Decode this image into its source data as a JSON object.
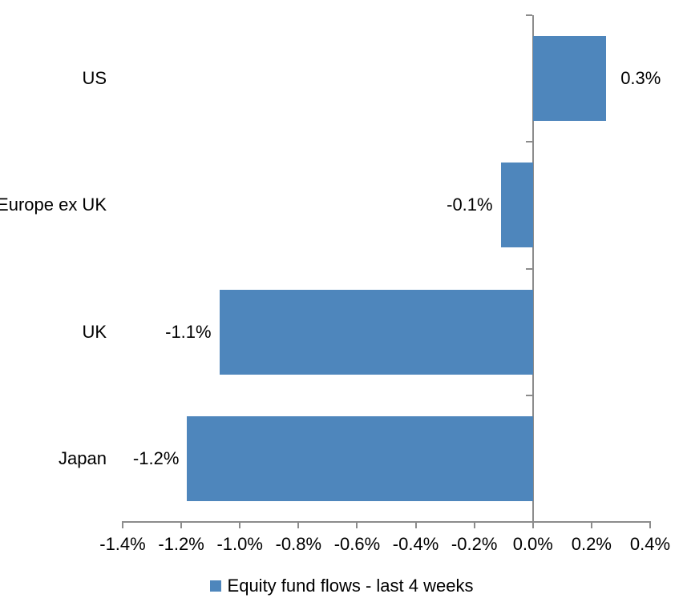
{
  "chart_data": {
    "type": "bar",
    "orientation": "horizontal",
    "title": "",
    "xlabel": "",
    "ylabel": "",
    "categories": [
      "US",
      "Europe ex UK",
      "UK",
      "Japan"
    ],
    "values": [
      0.3,
      -0.1,
      -1.1,
      -1.2
    ],
    "data_labels": [
      "0.3%",
      "-0.1%",
      "-1.1%",
      "-1.2%"
    ],
    "bar_plot_values": [
      0.25,
      -0.11,
      -1.07,
      -1.18
    ],
    "x_axis": {
      "min": -1.4,
      "max": 0.4,
      "step": 0.2,
      "tick_values": [
        -1.4,
        -1.2,
        -1.0,
        -0.8,
        -0.6,
        -0.4,
        -0.2,
        0.0,
        0.2,
        0.4
      ],
      "tick_labels": [
        "-1.4%",
        "-1.2%",
        "-1.0%",
        "-0.8%",
        "-0.6%",
        "-0.4%",
        "-0.2%",
        "0.0%",
        "0.2%",
        "0.4%"
      ]
    },
    "grid": false,
    "legend": {
      "label": "Equity fund flows - last 4 weeks",
      "position": "bottom-center"
    },
    "colors": {
      "bar": "#4E86BC",
      "axis": "#8C8C8C",
      "text": "#000000",
      "background": "#FFFFFF"
    }
  }
}
